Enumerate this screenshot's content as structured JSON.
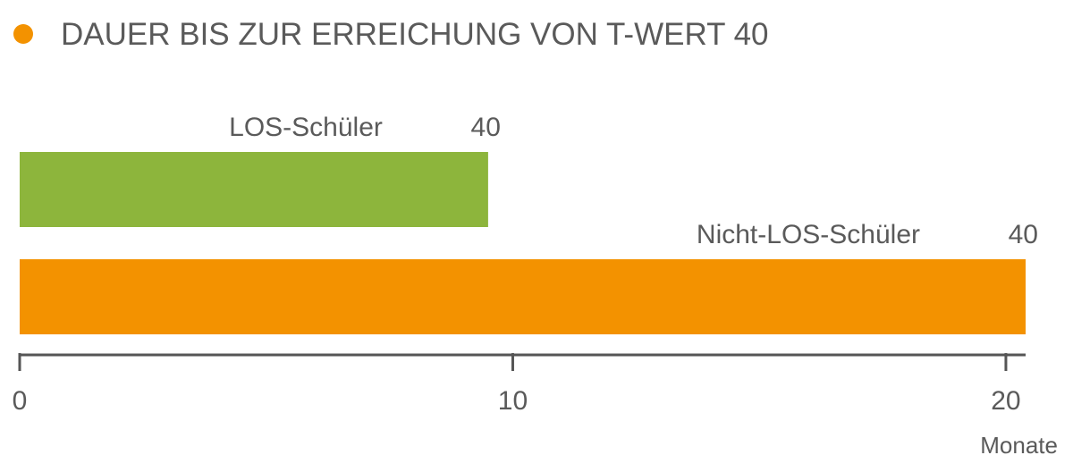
{
  "chart_data": {
    "type": "bar",
    "orientation": "horizontal",
    "title": "DAUER BIS ZUR ERREICHUNG VON T-WERT 40",
    "categories": [
      "LOS-Schüler",
      "Nicht-LOS-Schüler"
    ],
    "values": [
      9.5,
      20.4
    ],
    "end_labels": [
      "40",
      "40"
    ],
    "colors": [
      "#8db53c",
      "#f39200"
    ],
    "xlim": [
      0,
      20.4
    ],
    "xticks": [
      0,
      10,
      20
    ],
    "xlabel": "Monate"
  }
}
